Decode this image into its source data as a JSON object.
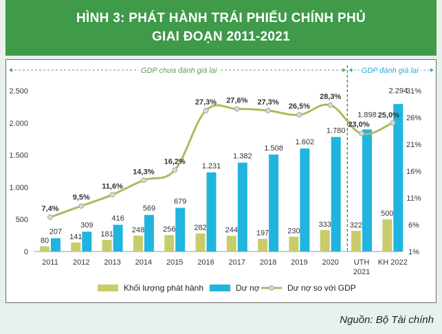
{
  "header": {
    "line1": "HÌNH 3: PHÁT HÀNH TRÁI PHIẾU CHÍNH PHỦ",
    "line2": "GIAI ĐOẠN 2011-2021"
  },
  "source": "Nguồn: Bộ Tài chính",
  "chart_data": {
    "type": "bar",
    "categories": [
      "2011",
      "2012",
      "2013",
      "2014",
      "2015",
      "2016",
      "2017",
      "2018",
      "2019",
      "2020",
      "UTH 2021",
      "KH 2022"
    ],
    "series": [
      {
        "name": "Khối lượng phát hành",
        "type": "bar",
        "axis": "left",
        "color": "#c9cc6b",
        "values": [
          80,
          141,
          181,
          248,
          256,
          282,
          244,
          197,
          230,
          333,
          322,
          500
        ],
        "labels": [
          "80",
          "141",
          "181",
          "248",
          "256",
          "282",
          "244",
          "197",
          "230",
          "333",
          "322",
          "500"
        ]
      },
      {
        "name": "Dư nợ",
        "type": "bar",
        "axis": "left",
        "color": "#1fb5df",
        "values": [
          207,
          309,
          416,
          569,
          679,
          1231,
          1382,
          1508,
          1602,
          1780,
          1898,
          2294
        ],
        "labels": [
          "207",
          "309",
          "416",
          "569",
          "679",
          "1.231",
          "1.382",
          "1.508",
          "1.602",
          "1.780",
          "1.898",
          "2.294"
        ]
      },
      {
        "name": "Dư nợ so với GDP",
        "type": "line",
        "axis": "right",
        "color": "#a7bd5c",
        "values": [
          7.4,
          9.5,
          11.6,
          14.3,
          16.2,
          27.3,
          27.6,
          27.3,
          26.5,
          28.3,
          23.0,
          25.0
        ],
        "labels": [
          "7,4%",
          "9,5%",
          "11,6%",
          "14,3%",
          "16,2%",
          "27,3%",
          "27,6%",
          "27,3%",
          "26,5%",
          "28,3%",
          "23,0%",
          "25,0%"
        ]
      }
    ],
    "y_left": {
      "range": [
        0,
        2500
      ],
      "ticks": [
        "0",
        "500",
        "1.000",
        "1.500",
        "2.000",
        "2.500"
      ],
      "tick_values": [
        0,
        500,
        1000,
        1500,
        2000,
        2500
      ]
    },
    "y_right": {
      "range": [
        1,
        31
      ],
      "ticks": [
        "1%",
        "6%",
        "11%",
        "16%",
        "21%",
        "26%",
        "31%"
      ],
      "tick_values": [
        1,
        6,
        11,
        16,
        21,
        26,
        31
      ]
    },
    "x_tick_labels": [
      [
        "2011"
      ],
      [
        "2012"
      ],
      [
        "2013"
      ],
      [
        "2014"
      ],
      [
        "2015"
      ],
      [
        "2016"
      ],
      [
        "2017"
      ],
      [
        "2018"
      ],
      [
        "2019"
      ],
      [
        "2020"
      ],
      [
        "UTH",
        "2021"
      ],
      [
        "KH 2022"
      ]
    ],
    "periods": [
      {
        "label": "GDP chưa đánh giá lại",
        "start": "2011",
        "end": "2020",
        "color": "#5e9a55"
      },
      {
        "label": "GDP đánh giá lại",
        "start": "UTH 2021",
        "end": "KH 2022",
        "color": "#2aa8d8"
      }
    ],
    "legend": [
      "Khối lượng phát hành",
      "Dư nợ",
      "Dư nợ so với GDP"
    ],
    "legend_position": "bottom",
    "grid": false
  }
}
